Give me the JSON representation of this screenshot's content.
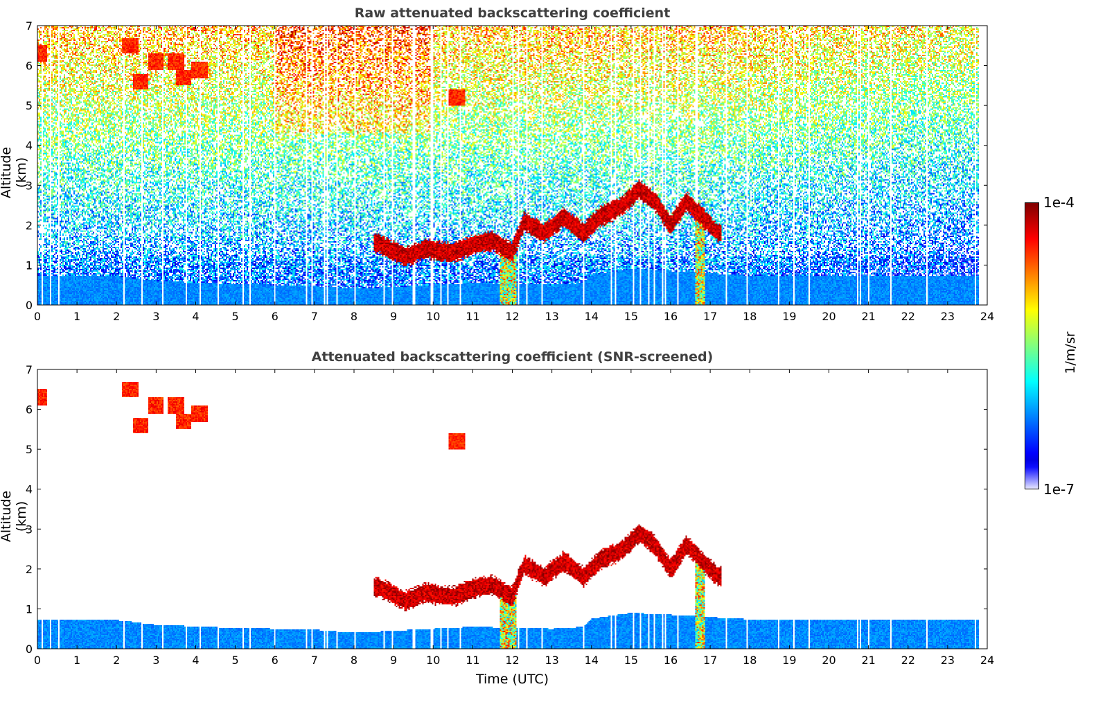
{
  "chart_data": {
    "type": "heatmap",
    "panels": [
      {
        "id": "raw",
        "title": "Raw attenuated backscattering coefficient",
        "ylabel": "Altitude (km)",
        "xlabel": "",
        "screened": false
      },
      {
        "id": "snr",
        "title": "Attenuated backscattering coefficient (SNR-screened)",
        "ylabel": "Altitude (km)",
        "xlabel": "Time (UTC)",
        "screened": true
      }
    ],
    "xlim": [
      0,
      24
    ],
    "ylim": [
      0,
      7
    ],
    "xticks": [
      0,
      1,
      2,
      3,
      4,
      5,
      6,
      7,
      8,
      9,
      10,
      11,
      12,
      13,
      14,
      15,
      16,
      17,
      18,
      19,
      20,
      21,
      22,
      23,
      24
    ],
    "yticks": [
      0,
      1,
      2,
      3,
      4,
      5,
      6,
      7
    ],
    "data_end_time": 23.8,
    "colorbar": {
      "label": "1/m/sr",
      "min_label": "1e-7",
      "max_label": "1e-4",
      "min": 1e-07,
      "max": 0.0001,
      "scale": "log",
      "colormap": "jet"
    },
    "boundary_layer_top_km": [
      [
        0,
        0.72
      ],
      [
        2,
        0.72
      ],
      [
        3,
        0.6
      ],
      [
        5,
        0.52
      ],
      [
        7,
        0.48
      ],
      [
        8,
        0.4
      ],
      [
        9,
        0.45
      ],
      [
        10,
        0.5
      ],
      [
        11,
        0.55
      ],
      [
        13,
        0.5
      ],
      [
        13.8,
        0.55
      ],
      [
        14,
        0.75
      ],
      [
        15,
        0.9
      ],
      [
        16,
        0.85
      ],
      [
        17,
        0.8
      ],
      [
        17.4,
        0.75
      ],
      [
        20,
        0.72
      ],
      [
        23.8,
        0.72
      ]
    ],
    "cloud_layer_km": [
      [
        8.6,
        1.55
      ],
      [
        9.3,
        1.2
      ],
      [
        9.8,
        1.4
      ],
      [
        10.5,
        1.3
      ],
      [
        11,
        1.5
      ],
      [
        11.5,
        1.6
      ],
      [
        12,
        1.3
      ],
      [
        12.3,
        2.1
      ],
      [
        12.8,
        1.8
      ],
      [
        13.3,
        2.2
      ],
      [
        13.8,
        1.8
      ],
      [
        14.2,
        2.2
      ],
      [
        14.8,
        2.5
      ],
      [
        15.2,
        2.9
      ],
      [
        15.6,
        2.6
      ],
      [
        16,
        2.0
      ],
      [
        16.4,
        2.6
      ],
      [
        16.8,
        2.2
      ],
      [
        17.2,
        1.8
      ]
    ],
    "elevated_aerosol_km": [
      [
        0.05,
        6.3
      ],
      [
        2.35,
        6.5
      ],
      [
        2.6,
        5.6
      ],
      [
        3.0,
        6.1
      ],
      [
        3.5,
        6.1
      ],
      [
        3.7,
        5.7
      ],
      [
        4.1,
        5.9
      ],
      [
        10.6,
        5.2
      ]
    ],
    "precipitation_times_utc": [
      11.8,
      12.0,
      16.75
    ]
  }
}
